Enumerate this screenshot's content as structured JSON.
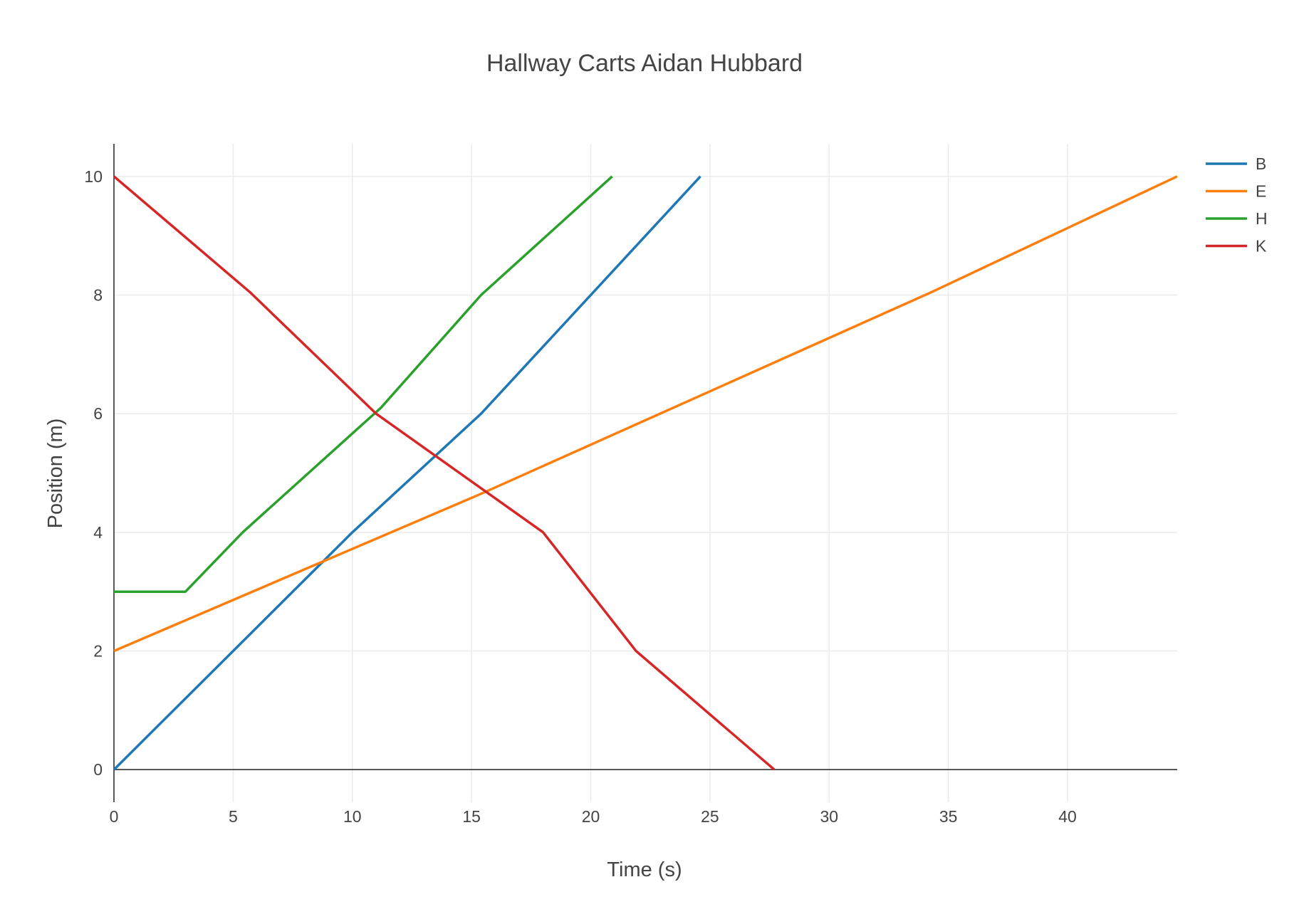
{
  "chart_data": {
    "type": "line",
    "title": "Hallway Carts Aidan Hubbard",
    "xlabel": "Time (s)",
    "ylabel": "Position (m)",
    "xlim": [
      0,
      44.6
    ],
    "ylim": [
      -0.55,
      10.55
    ],
    "xticks": [
      0,
      5,
      10,
      15,
      20,
      25,
      30,
      35,
      40
    ],
    "yticks": [
      0,
      2,
      4,
      6,
      8,
      10
    ],
    "grid": true,
    "legend_position": "top-right",
    "series": [
      {
        "name": "B",
        "color": "#1f77b4",
        "x": [
          0,
          10,
          15.4,
          24.6
        ],
        "y": [
          0,
          4,
          6,
          10
        ]
      },
      {
        "name": "E",
        "color": "#ff7f0e",
        "x": [
          0,
          15.4,
          34.3,
          44.6
        ],
        "y": [
          2,
          4.65,
          8.05,
          10
        ]
      },
      {
        "name": "H",
        "color": "#2ca02c",
        "x": [
          0,
          3,
          5.4,
          11.2,
          15.4,
          20.9
        ],
        "y": [
          3,
          3,
          4,
          6.1,
          8,
          10
        ]
      },
      {
        "name": "K",
        "color": "#d62728",
        "x": [
          0,
          5.7,
          11,
          18,
          21.9,
          27.7
        ],
        "y": [
          10,
          8.05,
          6,
          4,
          2,
          0
        ]
      }
    ]
  }
}
